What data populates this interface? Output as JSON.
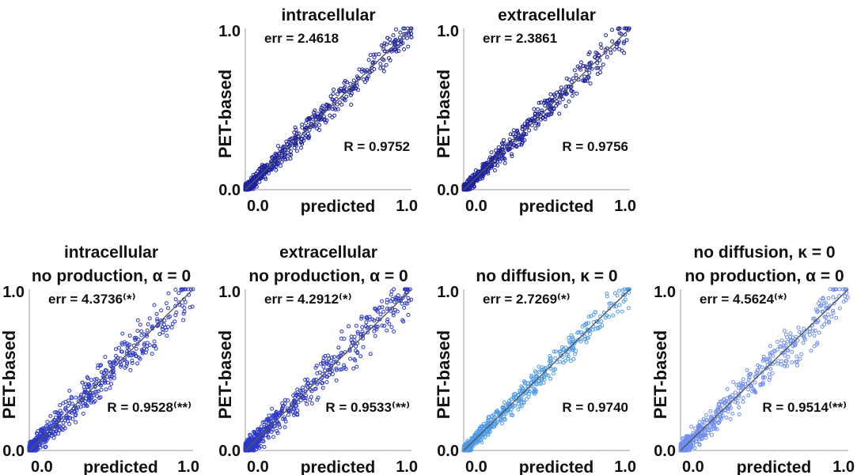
{
  "figure": {
    "xlabel": "predicted",
    "ylabel": "PET-based",
    "tick_min": "0.0",
    "tick_max": "1.0",
    "line_color": "#555555"
  },
  "chart_data": [
    {
      "type": "scatter",
      "title_lines": [
        "intracellular"
      ],
      "err_label": "err = 2.4618",
      "r_label": "R = 0.9752",
      "xlim": [
        0,
        1
      ],
      "ylim": [
        0,
        1
      ],
      "xlabel": "predicted",
      "ylabel": "PET-based",
      "xticks": [
        "0.0",
        "1.0"
      ],
      "yticks": [
        "0.0",
        "1.0"
      ],
      "identity_line": true,
      "point_color": "#1c22a0",
      "point_count": 600,
      "seed": 11,
      "spread": 0.09
    },
    {
      "type": "scatter",
      "title_lines": [
        "extracellular"
      ],
      "err_label": "err = 2.3861",
      "r_label": "R = 0.9756",
      "xlim": [
        0,
        1
      ],
      "ylim": [
        0,
        1
      ],
      "xlabel": "predicted",
      "ylabel": "PET-based",
      "xticks": [
        "0.0",
        "1.0"
      ],
      "yticks": [
        "0.0",
        "1.0"
      ],
      "identity_line": true,
      "point_color": "#1c22a0",
      "point_count": 600,
      "seed": 23,
      "spread": 0.09
    },
    {
      "type": "scatter",
      "title_lines": [
        "intracellular",
        "no production, α = 0"
      ],
      "err_label": "err = 4.3736⁽*⁾",
      "r_label": "R = 0.9528⁽**⁾",
      "xlim": [
        0,
        1
      ],
      "ylim": [
        0,
        1
      ],
      "xlabel": "predicted",
      "ylabel": "PET-based",
      "xticks": [
        "0.0",
        "1.0"
      ],
      "yticks": [
        "0.0",
        "1.0"
      ],
      "identity_line": true,
      "point_color": "#2b38c8",
      "point_count": 600,
      "seed": 37,
      "spread": 0.13
    },
    {
      "type": "scatter",
      "title_lines": [
        "extracellular",
        "no production, α = 0"
      ],
      "err_label": "err = 4.2912⁽*⁾",
      "r_label": "R = 0.9533⁽**⁾",
      "xlim": [
        0,
        1
      ],
      "ylim": [
        0,
        1
      ],
      "xlabel": "predicted",
      "ylabel": "PET-based",
      "xticks": [
        "0.0",
        "1.0"
      ],
      "yticks": [
        "0.0",
        "1.0"
      ],
      "identity_line": true,
      "point_color": "#2b38c8",
      "point_count": 600,
      "seed": 41,
      "spread": 0.13
    },
    {
      "type": "scatter",
      "title_lines": [
        "no diffusion, κ = 0"
      ],
      "err_label": "err = 2.7269⁽*⁾",
      "r_label": "R = 0.9740",
      "xlim": [
        0,
        1
      ],
      "ylim": [
        0,
        1
      ],
      "xlabel": "predicted",
      "ylabel": "PET-based",
      "xticks": [
        "0.0",
        "1.0"
      ],
      "yticks": [
        "0.0",
        "1.0"
      ],
      "identity_line": true,
      "point_color": "#4f9be8",
      "point_count": 600,
      "seed": 53,
      "spread": 0.09
    },
    {
      "type": "scatter",
      "title_lines": [
        "no diffusion, κ = 0",
        "no production, α = 0"
      ],
      "err_label": "err = 4.5624⁽*⁾",
      "r_label": "R = 0.9514⁽**⁾",
      "xlim": [
        0,
        1
      ],
      "ylim": [
        0,
        1
      ],
      "xlabel": "predicted",
      "ylabel": "PET-based",
      "xticks": [
        "0.0",
        "1.0"
      ],
      "yticks": [
        "0.0",
        "1.0"
      ],
      "identity_line": true,
      "point_color": "#6f8ef0",
      "point_count": 600,
      "seed": 67,
      "spread": 0.13
    }
  ]
}
